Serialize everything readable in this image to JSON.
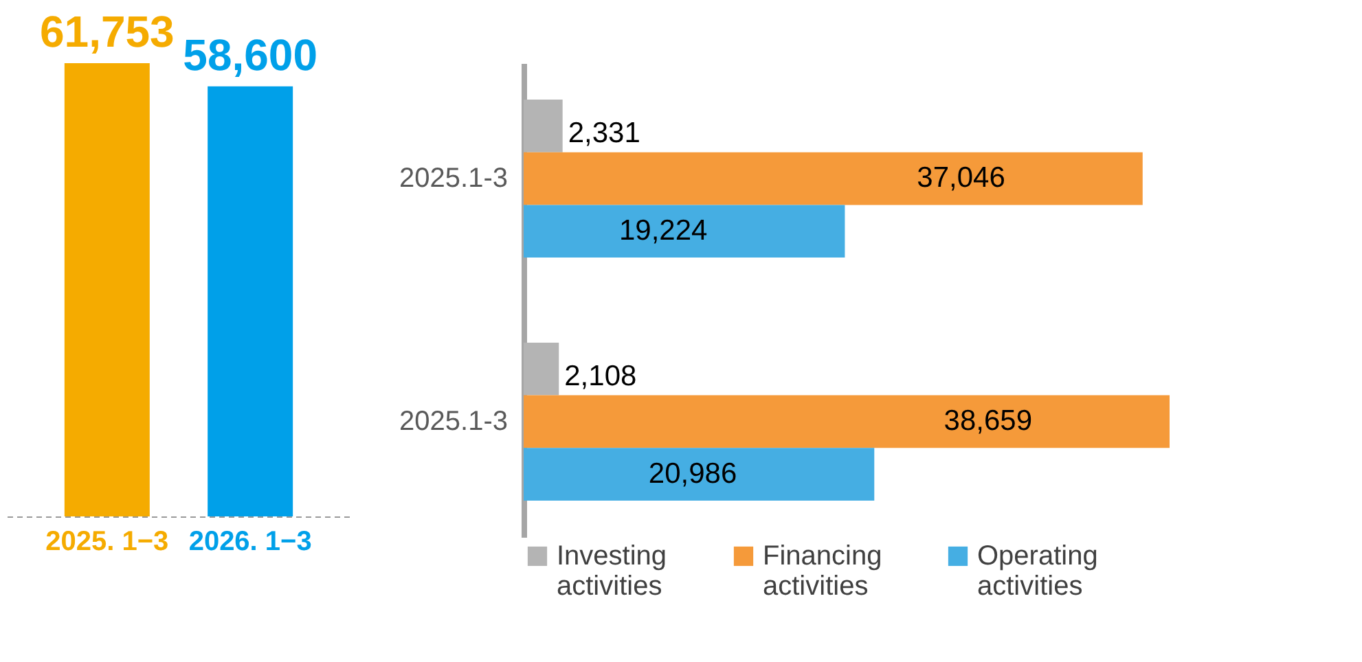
{
  "chart_data": [
    {
      "type": "bar",
      "categories": [
        "2025. 1−3",
        "2026. 1−3"
      ],
      "values": [
        61753,
        58600
      ],
      "colors": [
        "#f5ab00",
        "#00a0e9"
      ],
      "value_labels": [
        "61,753",
        "58,600"
      ]
    },
    {
      "type": "bar",
      "orientation": "horizontal",
      "categories": [
        "2025.1-3",
        "2025.1-3"
      ],
      "series": [
        {
          "name": "Investing activities",
          "color": "#b4b4b4",
          "values": [
            2331,
            2108
          ],
          "value_labels": [
            "2,331",
            "2,108"
          ]
        },
        {
          "name": "Financing activities",
          "color": "#f59a3a",
          "values": [
            37046,
            38659
          ],
          "value_labels": [
            "37,046",
            "38,659"
          ]
        },
        {
          "name": "Operating activities",
          "color": "#45aee3",
          "values": [
            19224,
            20986
          ],
          "value_labels": [
            "19,224",
            "20,986"
          ]
        }
      ],
      "legend": "bottom"
    }
  ]
}
